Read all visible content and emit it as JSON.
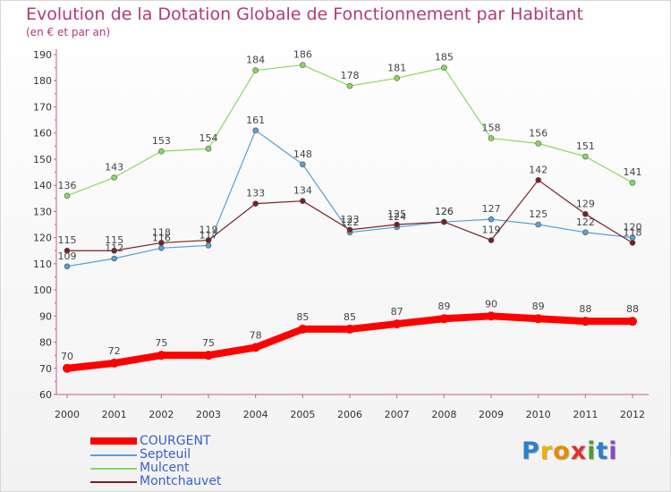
{
  "header": {
    "title": "Evolution de la Dotation Globale de Fonctionnement par Habitant",
    "subtitle": "(en € et par an)"
  },
  "brand": {
    "letters": [
      {
        "char": "P",
        "color": "#2d7fd0"
      },
      {
        "char": "r",
        "color": "#e8b400"
      },
      {
        "char": "o",
        "color": "#e88a00"
      },
      {
        "char": "x",
        "color": "#e03030"
      },
      {
        "char": "i",
        "color": "#4aa02c"
      },
      {
        "char": "t",
        "color": "#2d7fd0"
      },
      {
        "char": "i",
        "color": "#8a4ab8"
      }
    ]
  },
  "chart_data": {
    "type": "line",
    "title": "Evolution de la Dotation Globale de Fonctionnement par Habitant",
    "subtitle": "(en € et par an)",
    "x": [
      2000,
      2001,
      2002,
      2003,
      2004,
      2005,
      2006,
      2007,
      2008,
      2009,
      2010,
      2011,
      2012
    ],
    "ylim": [
      60,
      190
    ],
    "y_ticks": [
      60,
      70,
      80,
      90,
      100,
      110,
      120,
      130,
      140,
      150,
      160,
      170,
      180,
      190
    ],
    "grid": false,
    "legend_position": "bottom-left",
    "series": [
      {
        "name": "COURGENT",
        "color": "#ff0000",
        "width": 8,
        "marker": 5,
        "values": [
          70,
          72,
          75,
          75,
          78,
          85,
          85,
          87,
          89,
          90,
          89,
          88,
          88
        ],
        "labels": [
          "70",
          "72",
          "75",
          "75",
          "78",
          "85",
          "85",
          "87",
          "89",
          "90",
          "89",
          "88",
          "88"
        ]
      },
      {
        "name": "Septeuil",
        "color": "#5a9fd4",
        "width": 1.2,
        "marker": 3,
        "values": [
          109,
          112,
          116,
          117,
          161,
          148,
          122,
          124,
          126,
          127,
          125,
          122,
          120
        ],
        "labels": [
          "109",
          "112",
          "116",
          "117",
          "161",
          "148",
          "122",
          "124",
          "126",
          "127",
          "125",
          "122",
          "120"
        ]
      },
      {
        "name": "Mulcent",
        "color": "#88d860",
        "width": 1.2,
        "marker": 3,
        "values": [
          136,
          143,
          153,
          154,
          184,
          186,
          178,
          181,
          185,
          158,
          156,
          151,
          141
        ],
        "labels": [
          "136",
          "143",
          "153",
          "154",
          "184",
          "186",
          "178",
          "181",
          "185",
          "158",
          "156",
          "151",
          "141"
        ]
      },
      {
        "name": "Montchauvet",
        "color": "#7a1e24",
        "width": 1.2,
        "marker": 3,
        "values": [
          115,
          115,
          118,
          119,
          133,
          134,
          123,
          125,
          126,
          119,
          142,
          129,
          118
        ],
        "labels": [
          "115",
          "115",
          "118",
          "119",
          "133",
          "134",
          "123",
          "125",
          "126",
          "119",
          "142",
          "129",
          "118"
        ]
      }
    ]
  }
}
